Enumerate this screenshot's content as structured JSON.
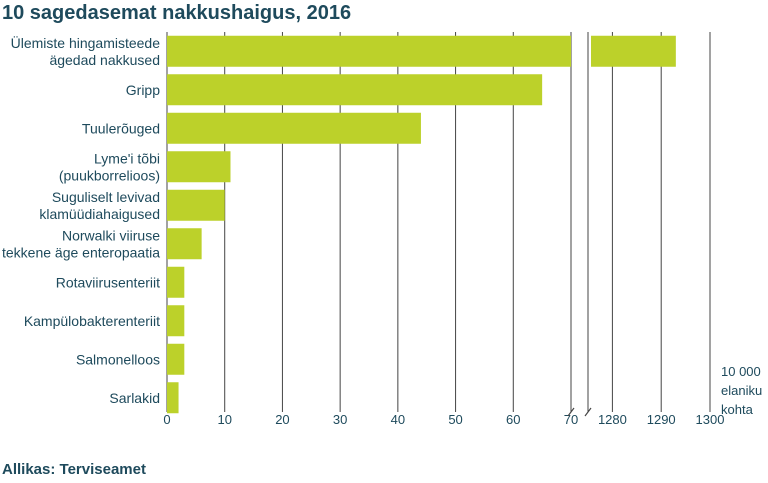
{
  "chart_data": {
    "type": "bar",
    "orientation": "horizontal",
    "title": "10 sagedasemat nakkushaigus, 2016",
    "source": "Allikas: Terviseamet",
    "unit_label": [
      "10 000",
      "elaniku",
      "kohta"
    ],
    "categories": [
      [
        "Ülemiste hingamisteede",
        "ägedad nakkused"
      ],
      [
        "Gripp"
      ],
      [
        "Tuulerõuged"
      ],
      [
        "Lyme'i tõbi",
        "(puukborrelioos)"
      ],
      [
        "Suguliselt levivad",
        "klamüüdiahaigused"
      ],
      [
        "Norwalki viiruse",
        "tekkene äge enteropaatia"
      ],
      [
        "Rotaviirusenteriit"
      ],
      [
        "Kampülobakterenteriit"
      ],
      [
        "Salmonelloos"
      ],
      [
        "Sarlakid"
      ]
    ],
    "values": [
      1293,
      65,
      44,
      11,
      10,
      6,
      3,
      3,
      3,
      2
    ],
    "axis_break": true,
    "xlim_left": [
      0,
      70
    ],
    "xlim_right": [
      1275,
      1300
    ],
    "xticks_left": [
      "0",
      "10",
      "20",
      "30",
      "40",
      "50",
      "60",
      "70"
    ],
    "xticks_right": [
      "1280",
      "1290",
      "1300"
    ],
    "grid": true,
    "colors": {
      "bar": "#bcd12a",
      "text": "#1e4a5c",
      "grid": "#444444"
    }
  }
}
